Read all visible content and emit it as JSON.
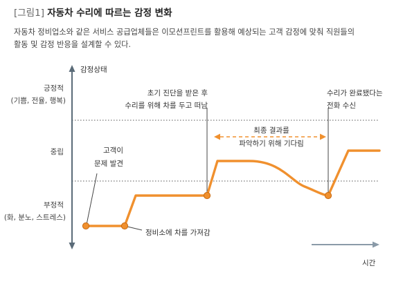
{
  "figure": {
    "tag": "[그림1]",
    "title": "자동차 수리에 따르는 감정 변화",
    "subtitle_line1": "자동차 정비업소와 같은 서비스 공급업체들은 이모션프린트를 활용해 예상되는 고객 감정에 맞춰 직원들의",
    "subtitle_line2": "활동 및 감정 반응을 설계할 수 있다."
  },
  "axes": {
    "y_title": "감정상태",
    "x_title": "시간",
    "levels": {
      "positive": {
        "label": "긍정적",
        "detail": "(기쁨, 전율, 행복)"
      },
      "neutral": {
        "label": "중립"
      },
      "negative": {
        "label": "부정적",
        "detail": "(화, 분노, 스트레스)"
      }
    }
  },
  "annotations": {
    "event1": {
      "line1": "고객이",
      "line2": "문제 발견"
    },
    "event2": {
      "text": "정비소에 차를 가져감"
    },
    "event3": {
      "line1": "초기 진단을 받은 후",
      "line2": "수리를 위해 차를 두고 떠남"
    },
    "event4": {
      "line1": "최종 결과를",
      "line2": "파악하기 위해 기다림"
    },
    "event5": {
      "line1": "수리가 완료됐다는",
      "line2": "전화 수신"
    }
  },
  "colors": {
    "accent": "#F0902E",
    "axis": "#5a6b78",
    "guide": "#555555",
    "text": "#444444"
  }
}
